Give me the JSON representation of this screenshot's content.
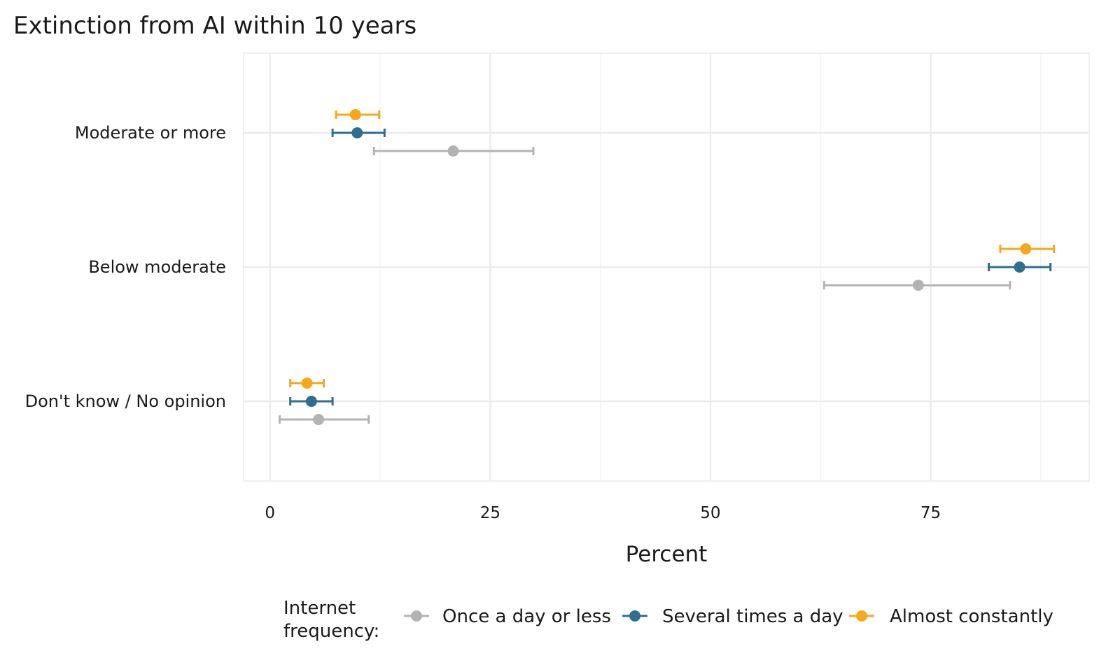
{
  "chart_data": {
    "type": "scatter",
    "title": "Extinction from AI within 10 years",
    "xlabel": "Percent",
    "ylabel": "",
    "xlim": [
      -3,
      93
    ],
    "xticks": [
      0,
      25,
      50,
      75
    ],
    "xtick_labels": [
      "0",
      "25",
      "50",
      "75"
    ],
    "categories": [
      "Moderate or more",
      "Below moderate",
      "Don't know / No opinion"
    ],
    "grid": true,
    "legend": {
      "title": "Internet frequency:",
      "title_lines": [
        "Internet",
        "frequency:"
      ],
      "position": "bottom"
    },
    "series": [
      {
        "name": "Once a day or less",
        "color": "#b3b3b3",
        "values": [
          20.8,
          73.6,
          5.5
        ],
        "lower": [
          11.8,
          62.9,
          1.1
        ],
        "upper": [
          29.9,
          84.0,
          11.2
        ]
      },
      {
        "name": "Several times a day",
        "color": "#2e6e8e",
        "values": [
          9.9,
          85.1,
          4.7
        ],
        "lower": [
          7.1,
          81.6,
          2.3
        ],
        "upper": [
          13.0,
          88.6,
          7.1
        ]
      },
      {
        "name": "Almost constantly",
        "color": "#f5a81c",
        "values": [
          9.7,
          85.8,
          4.2
        ],
        "lower": [
          7.5,
          82.9,
          2.3
        ],
        "upper": [
          12.4,
          89.0,
          6.1
        ]
      }
    ]
  }
}
